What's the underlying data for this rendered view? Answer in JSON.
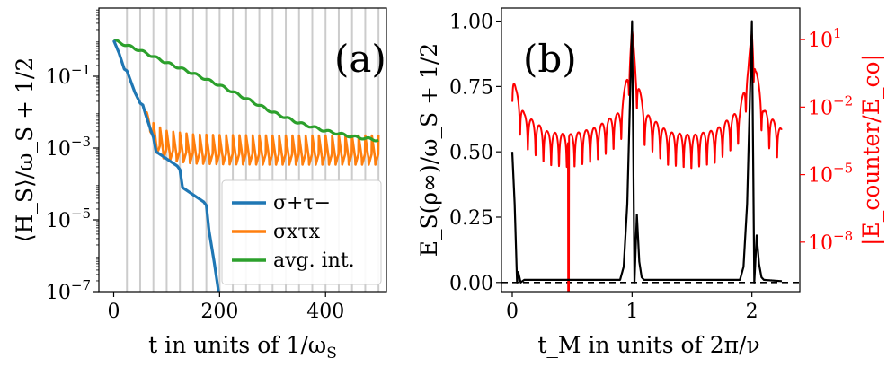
{
  "chart_data": [
    {
      "type": "line",
      "panel_label": "(a)",
      "xlabel": "t in units of 1/ω",
      "xlabel_sub": "S",
      "ylabel": "⟨H_S⟩/ω_S + 1/2",
      "yscale": "log",
      "xlim": [
        -28,
        515
      ],
      "ylim_exp": [
        -7,
        0.9
      ],
      "x_ticks": [
        {
          "value": 0,
          "label": "0"
        },
        {
          "value": 200,
          "label": "200"
        },
        {
          "value": 400,
          "label": "400"
        }
      ],
      "y_ticks": [
        {
          "exp": -1,
          "base": "10",
          "sup": "−1"
        },
        {
          "exp": -3,
          "base": "10",
          "sup": "−3"
        },
        {
          "exp": -5,
          "base": "10",
          "sup": "−5"
        },
        {
          "exp": -7,
          "base": "10",
          "sup": "−7"
        }
      ],
      "vertical_gridlines_period": 25,
      "legend": {
        "position": "lower-right",
        "entries": [
          {
            "label": "σ+τ−",
            "color": "#1f77b4"
          },
          {
            "label": "σxτx",
            "color": "#ff7f0e"
          },
          {
            "label": "avg. int.",
            "color": "#2ca02c"
          }
        ]
      },
      "series": [
        {
          "name": "σ+τ−",
          "color": "#1f77b4",
          "x": [
            0,
            10,
            20,
            25,
            30,
            40,
            50,
            55,
            60,
            70,
            75,
            80,
            90,
            100,
            110,
            120,
            125,
            130,
            140,
            150,
            160,
            170,
            175,
            180,
            190,
            200
          ],
          "log10_y": [
            0.0,
            -0.35,
            -0.8,
            -0.85,
            -1.05,
            -1.45,
            -1.75,
            -1.8,
            -2.05,
            -2.5,
            -2.7,
            -3.1,
            -3.2,
            -3.3,
            -3.4,
            -3.5,
            -3.6,
            -4.1,
            -4.2,
            -4.3,
            -4.4,
            -4.5,
            -4.6,
            -5.3,
            -6.2,
            -7.2
          ]
        },
        {
          "name": "σxτx",
          "color": "#ff7f0e",
          "x": [
            0,
            10,
            20,
            25,
            30,
            40,
            50,
            55,
            60,
            70,
            80,
            100,
            150,
            200,
            300,
            400,
            500
          ],
          "log10_y": [
            0.0,
            -0.35,
            -0.8,
            -0.85,
            -1.05,
            -1.45,
            -1.75,
            -1.8,
            -2.0,
            -2.35,
            -2.7,
            -2.85,
            -2.95,
            -2.97,
            -2.98,
            -2.98,
            -2.98
          ],
          "oscillation_period": 12.5
        },
        {
          "name": "avg. int.",
          "color": "#2ca02c",
          "x": [
            0,
            50,
            100,
            150,
            200,
            250,
            300,
            350,
            400,
            450,
            500
          ],
          "log10_y": [
            0.0,
            -0.28,
            -0.62,
            -0.92,
            -1.25,
            -1.62,
            -2.0,
            -2.3,
            -2.52,
            -2.68,
            -2.78
          ]
        }
      ]
    },
    {
      "type": "line",
      "panel_label": "(b)",
      "xlabel": "t_M in units of 2π/ν",
      "ylabel_left": "E_S(ρ∞)/ω_S + 1/2",
      "ylabel_right": "|E_counter/E_co|",
      "xlim": [
        -0.09,
        2.4
      ],
      "ylim_left": [
        -0.035,
        1.05
      ],
      "ylim_right_exp": [
        -10.2,
        2.4
      ],
      "x_ticks": [
        {
          "value": 0,
          "label": "0"
        },
        {
          "value": 1,
          "label": "1"
        },
        {
          "value": 2,
          "label": "2"
        }
      ],
      "y_ticks_left": [
        {
          "value": 0.0,
          "label": "0.00"
        },
        {
          "value": 0.25,
          "label": "0.25"
        },
        {
          "value": 0.5,
          "label": "0.50"
        },
        {
          "value": 0.75,
          "label": "0.75"
        },
        {
          "value": 1.0,
          "label": "1.00"
        }
      ],
      "y_ticks_right": [
        {
          "exp": 1,
          "base": "10",
          "sup": "1"
        },
        {
          "exp": -2,
          "base": "10",
          "sup": "−2"
        },
        {
          "exp": -5,
          "base": "10",
          "sup": "−5"
        },
        {
          "exp": -8,
          "base": "10",
          "sup": "−8"
        }
      ],
      "reference_line": {
        "y": 0.0,
        "style": "dashed",
        "color": "#000000"
      },
      "series": [
        {
          "name": "E_S(ρ∞)/ω_S + 1/2",
          "axis": "left",
          "color": "#000000",
          "x": [
            0.0,
            0.02,
            0.04,
            0.05,
            0.07,
            0.1,
            0.9,
            0.93,
            0.96,
            1.0,
            1.02,
            1.04,
            1.06,
            1.08,
            1.1,
            1.9,
            1.93,
            1.96,
            2.0,
            2.02,
            2.04,
            2.06,
            2.08,
            2.1,
            2.25
          ],
          "y": [
            0.5,
            0.3,
            0.0,
            0.04,
            0.0,
            0.01,
            0.01,
            0.06,
            0.3,
            1.0,
            0.0,
            0.26,
            0.08,
            0.02,
            0.01,
            0.01,
            0.06,
            0.3,
            1.0,
            0.0,
            0.18,
            0.07,
            0.02,
            0.01,
            0.005
          ]
        },
        {
          "name": "|E_counter/E_co|",
          "axis": "right",
          "color": "#ff0000",
          "x": [
            0.0,
            0.03,
            0.1,
            0.3,
            0.46,
            0.5,
            0.7,
            0.9,
            0.97,
            1.0,
            1.03,
            1.1,
            1.3,
            1.5,
            1.7,
            1.9,
            1.97,
            2.0,
            2.03,
            2.1,
            2.25
          ],
          "log10_y_envelope": [
            -0.3,
            -1.2,
            -2.3,
            -3.1,
            -3.2,
            -3.2,
            -2.9,
            -2.2,
            -0.3,
            1.5,
            -0.3,
            -2.2,
            -3.1,
            -3.25,
            -3.0,
            -2.1,
            -0.2,
            1.5,
            -0.2,
            -2.1,
            -3.0
          ],
          "lobe_period": 0.065,
          "deep_dip": {
            "x": 0.47,
            "log10_y": -10.2
          }
        }
      ]
    }
  ]
}
